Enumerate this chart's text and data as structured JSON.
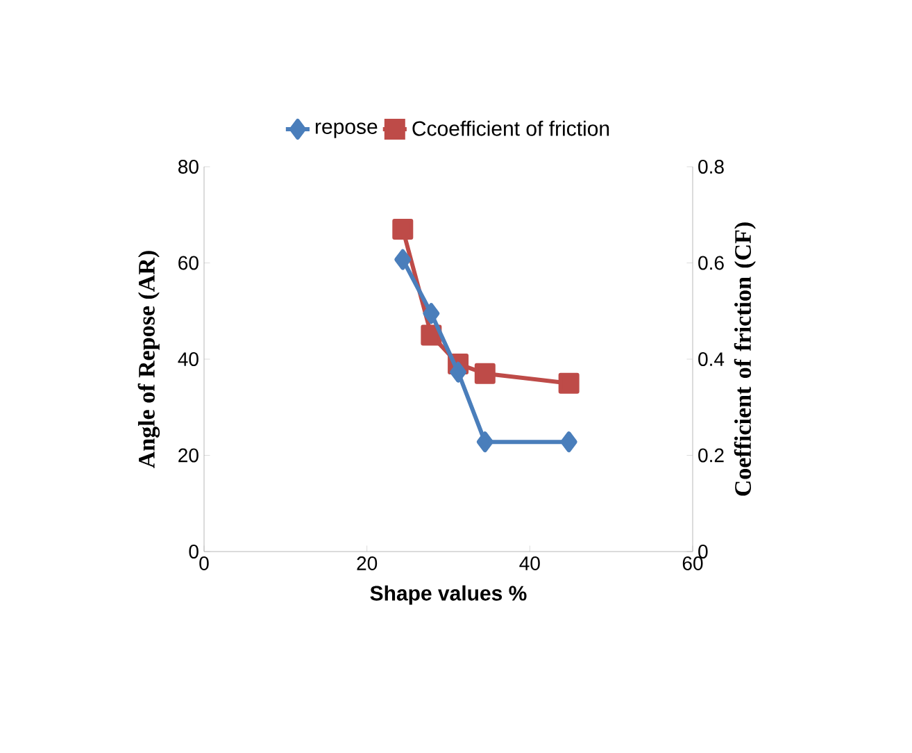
{
  "chart_data": {
    "type": "line",
    "xlabel": "Shape values %",
    "ylabel": "Angle of Repose (AR)",
    "y2label": "Coefficient of friction (CF)",
    "x": [
      24.4,
      27.9,
      31.2,
      34.5,
      44.8
    ],
    "series": [
      {
        "name": "repose",
        "color": "#4a7ebb",
        "marker": "diamond",
        "values": [
          60.7,
          49.5,
          37.3,
          22.8,
          22.8
        ]
      },
      {
        "name": "Ccoefficient of friction",
        "color": "#be4b48",
        "marker": "square",
        "axis": "y2",
        "values": [
          0.67,
          0.45,
          0.39,
          0.37,
          0.35
        ]
      }
    ],
    "xlim": [
      0,
      60
    ],
    "xticks": [
      0,
      20,
      40,
      60
    ],
    "ylim": [
      0,
      80
    ],
    "yticks": [
      0,
      20,
      40,
      60,
      80
    ],
    "y2lim": [
      0,
      0.8
    ],
    "y2ticks": [
      0,
      0.2,
      0.4,
      0.6,
      0.8
    ],
    "grid": false,
    "legend": "top",
    "line_style": "solid"
  }
}
